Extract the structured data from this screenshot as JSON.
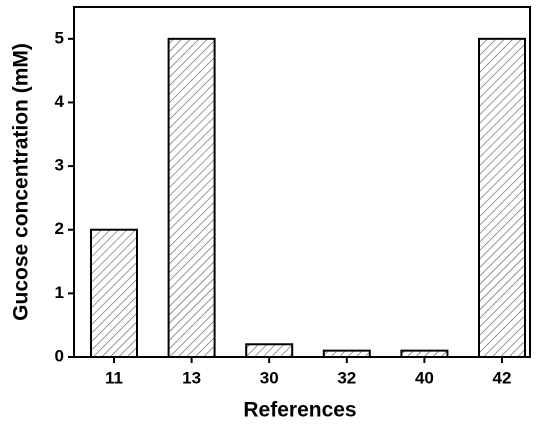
{
  "chart_data": {
    "type": "bar",
    "x_label": "References",
    "y_label": "Gucose concentration (mM)",
    "categories": [
      "11",
      "13",
      "30",
      "32",
      "40",
      "42"
    ],
    "values": [
      2,
      5,
      0.2,
      0.1,
      0.1,
      5
    ],
    "color": "#555555",
    "ylim": [
      0,
      5.5
    ],
    "yticks": [
      0,
      1,
      2,
      3,
      4,
      5
    ]
  }
}
